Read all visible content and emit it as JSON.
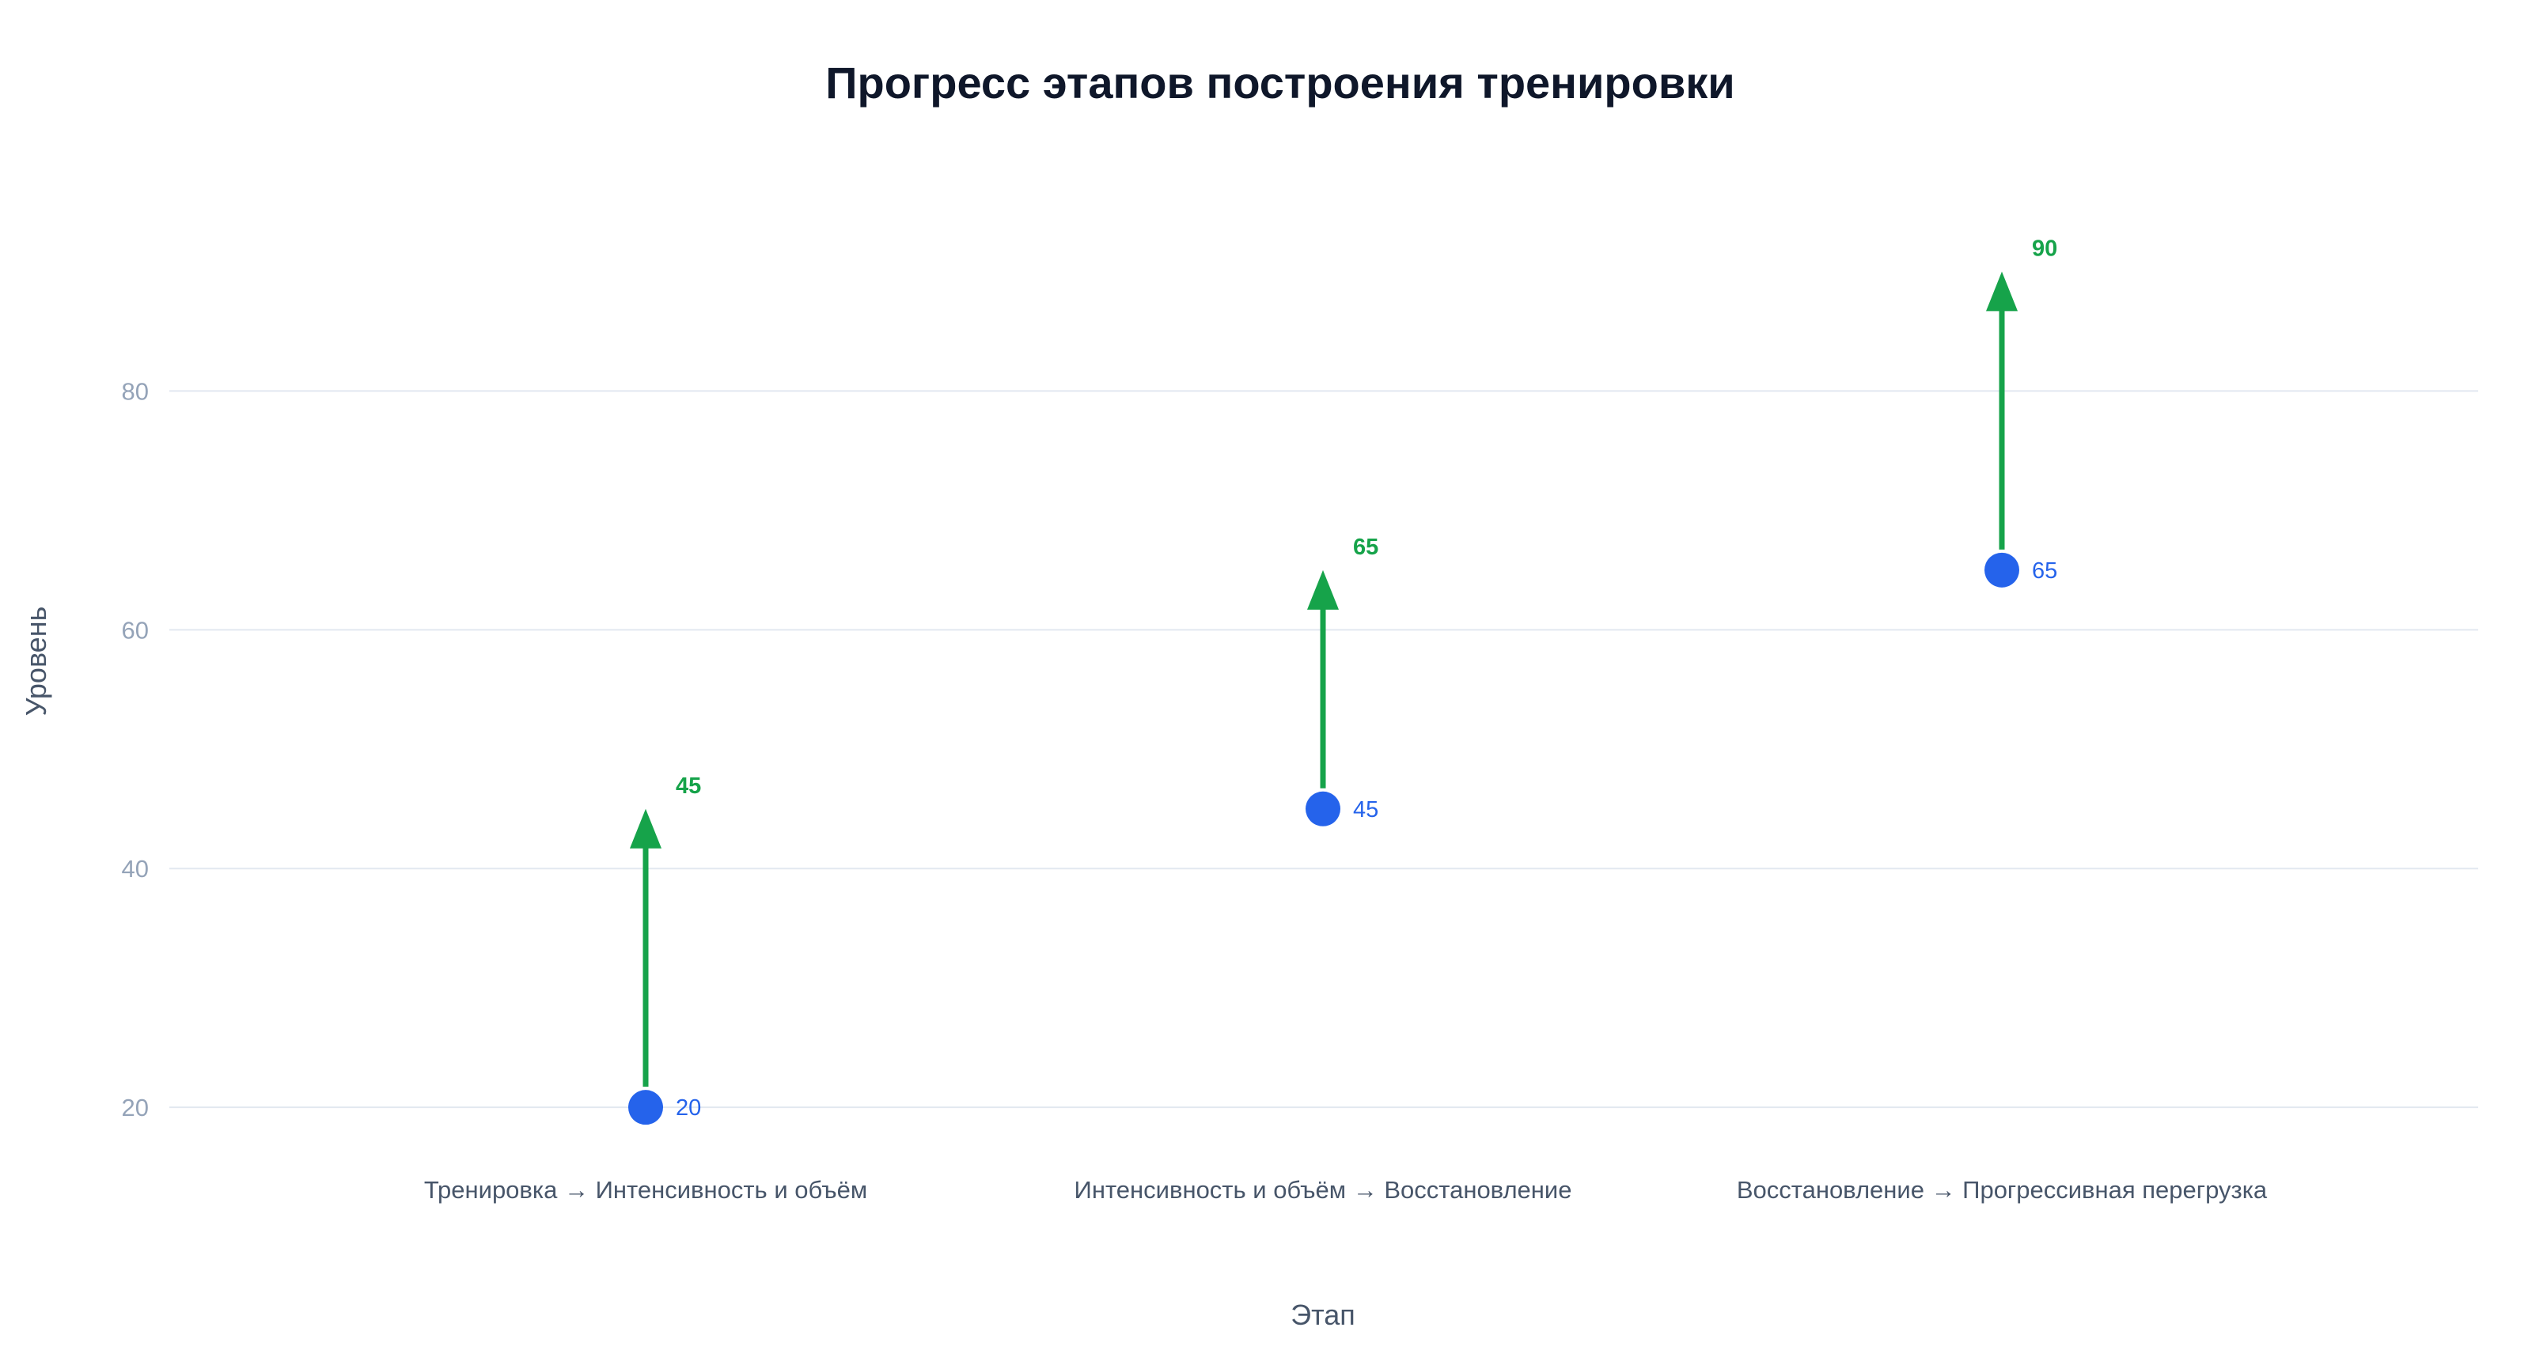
{
  "chart_data": {
    "type": "scatter",
    "title": "Прогресс этапов построения тренировки",
    "xlabel": "Этап",
    "ylabel": "Уровень",
    "categories": [
      "Тренировка → Интенсивность и объём",
      "Интенсивность и объём → Восстановление",
      "Восстановление → Прогрессивная перегрузка"
    ],
    "series": [
      {
        "values": [
          20,
          45,
          65
        ]
      },
      {
        "values": [
          45,
          65,
          90
        ]
      }
    ],
    "start_labels": [
      "20",
      "45",
      "65"
    ],
    "end_labels": [
      "45",
      "65",
      "90"
    ],
    "yticks": [
      20,
      40,
      60,
      80
    ],
    "ytick_labels": [
      "20",
      "40",
      "60",
      "80"
    ],
    "ylim": [
      16.7,
      99.5
    ],
    "grid": true,
    "legend": "none",
    "colors": {
      "start": "#2563eb",
      "arrow": "#16a34a"
    }
  }
}
